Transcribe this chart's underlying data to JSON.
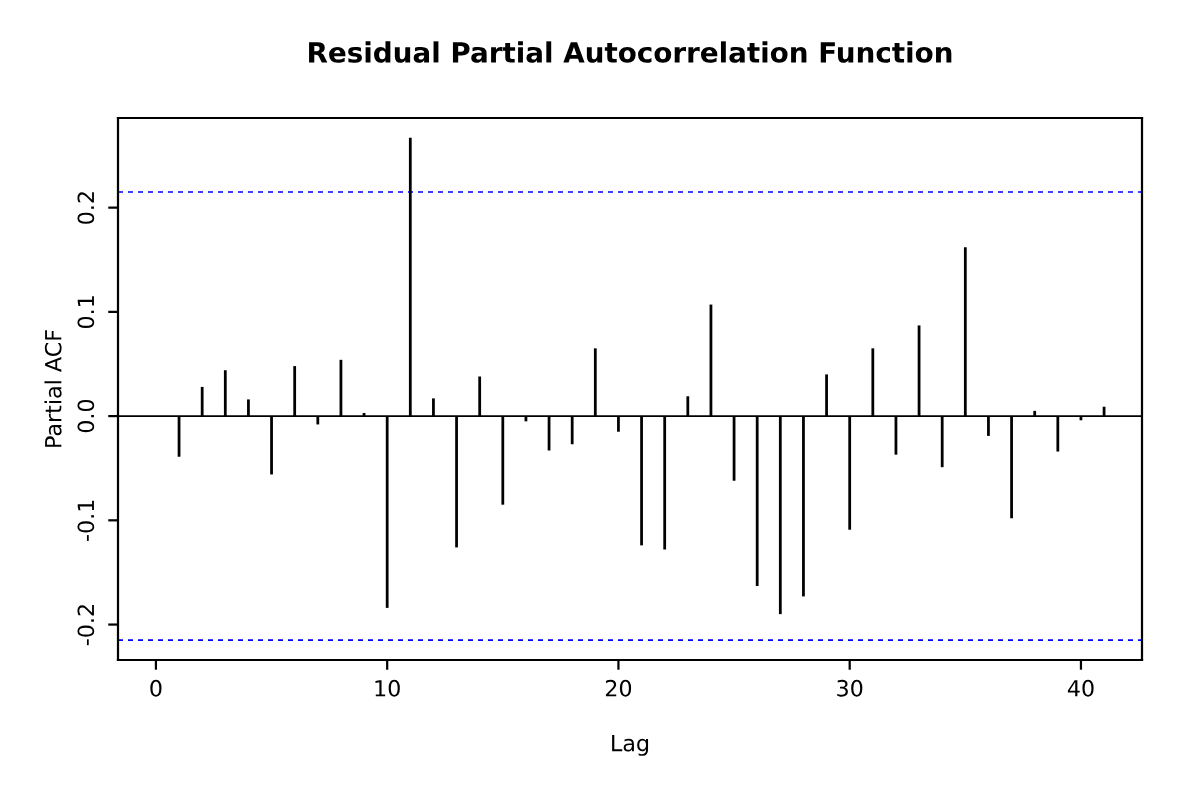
{
  "chart_data": {
    "type": "bar",
    "title": "Residual Partial Autocorrelation Function",
    "xlabel": "Lag",
    "ylabel": "Partial ACF",
    "x": [
      1,
      2,
      3,
      4,
      5,
      6,
      7,
      8,
      9,
      10,
      11,
      12,
      13,
      14,
      15,
      16,
      17,
      18,
      19,
      20,
      21,
      22,
      23,
      24,
      25,
      26,
      27,
      28,
      29,
      30,
      31,
      32,
      33,
      34,
      35,
      36,
      37,
      38,
      39,
      40,
      41
    ],
    "series": [
      {
        "color": "#000000",
        "values": [
          -0.039,
          0.028,
          0.044,
          0.016,
          -0.056,
          0.048,
          -0.008,
          0.054,
          0.003,
          -0.184,
          0.267,
          0.017,
          -0.126,
          0.038,
          -0.085,
          -0.005,
          -0.033,
          -0.027,
          0.065,
          -0.015,
          -0.124,
          -0.128,
          0.019,
          0.107,
          -0.062,
          -0.163,
          -0.19,
          -0.173,
          0.04,
          -0.109,
          0.065,
          -0.037,
          0.087,
          -0.049,
          0.162,
          -0.019,
          -0.098,
          0.005,
          -0.034,
          -0.004,
          0.009
        ]
      }
    ],
    "ref_lines": [
      {
        "axis": "y",
        "value": 0,
        "color": "#000000",
        "line_style": "solid"
      },
      {
        "axis": "y",
        "value": 0.215,
        "color": "#0000ff",
        "line_style": "dashed"
      },
      {
        "axis": "y",
        "value": -0.215,
        "color": "#0000ff",
        "line_style": "dashed"
      }
    ],
    "xlim": [
      -1.64,
      42.64
    ],
    "ylim": [
      -0.234,
      0.286
    ],
    "xticks": [
      0,
      10,
      20,
      30,
      40
    ],
    "yticks": [
      -0.2,
      -0.1,
      {
        "value": 0,
        "label": "0.0"
      },
      0.1,
      0.2
    ],
    "grid": false,
    "legend": false
  }
}
